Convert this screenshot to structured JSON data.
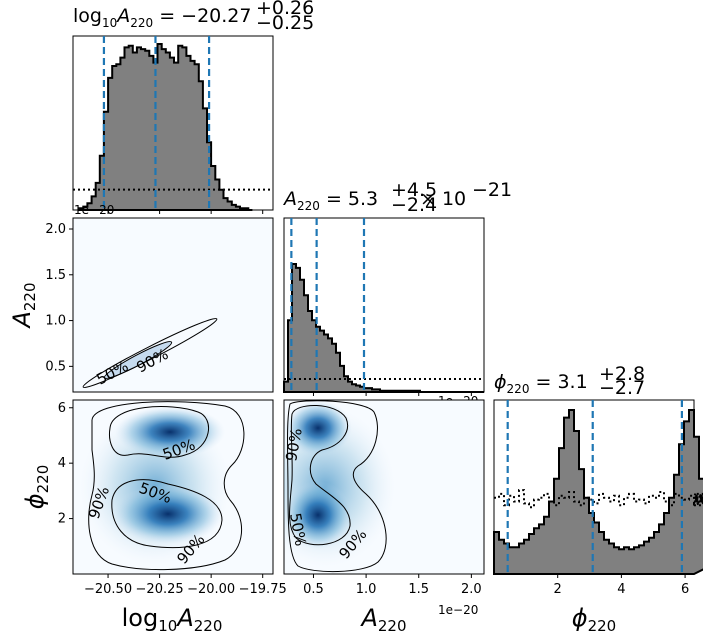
{
  "chart_data": {
    "type": "corner",
    "parameters": [
      {
        "key": "logA",
        "xlabel_main": "log",
        "xlabel_sub1": "10",
        "xlabel_var": "A",
        "xlabel_sub2": "220",
        "range": [
          -20.67,
          -19.7
        ],
        "ticks": [
          -20.5,
          -20.25,
          -20.0,
          -19.75
        ],
        "tick_labels": [
          "−20.50",
          "−20.25",
          "−20.00",
          "−19.75"
        ],
        "title_prefix": "log",
        "title_sub": "10",
        "title_var": "A",
        "title_sub2": "220",
        "title_eq": " = −20.27",
        "title_sup": "+0.26",
        "title_subsc": "−0.25",
        "quantiles": [
          -20.52,
          -20.27,
          -20.01
        ],
        "hist_bin_edges_start": -20.64,
        "hist_bin_width": 0.02,
        "hist_values": [
          1,
          2,
          4,
          8,
          16,
          32,
          58,
          78,
          85,
          86,
          90,
          96,
          97,
          93,
          96,
          95,
          94,
          91,
          87,
          98,
          95,
          93,
          90,
          87,
          97,
          96,
          91,
          88,
          86,
          76,
          60,
          40,
          26,
          18,
          12,
          7,
          5,
          3,
          2,
          1,
          1,
          0
        ],
        "prior_level": 12,
        "offset_label": "1e−20"
      },
      {
        "key": "A",
        "ylabel_var": "A",
        "ylabel_sub": "220",
        "range": [
          0.22,
          2.12
        ],
        "ticks": [
          0.5,
          1.0,
          1.5,
          2.0
        ],
        "tick_labels": [
          "0.5",
          "1.0",
          "1.5",
          "2.0"
        ],
        "title_var": "A",
        "title_sub": "220",
        "title_eq": " = 5.3",
        "title_sup": "+4.5",
        "title_subsc": "−2.4",
        "title_mult": " × 10",
        "title_exp": "−21",
        "quantiles": [
          0.29,
          0.53,
          0.98
        ],
        "hist_bin_edges_start": 0.22,
        "hist_bin_width": 0.038,
        "hist_values": [
          8,
          55,
          98,
          95,
          86,
          74,
          62,
          55,
          50,
          47,
          44,
          41,
          37,
          30,
          20,
          12,
          8,
          6,
          5,
          4,
          3,
          3,
          2,
          2,
          1,
          1,
          1,
          1,
          1,
          1,
          1,
          1,
          1,
          1,
          0,
          0,
          0,
          0,
          0,
          0,
          0,
          0,
          0,
          0,
          0,
          0,
          0,
          0,
          0,
          0
        ],
        "prior_level": 10,
        "offset_label": "1e−20"
      },
      {
        "key": "phi",
        "xlabel_var": "ϕ",
        "xlabel_sub": "220",
        "range": [
          0.0,
          6.28
        ],
        "ticks": [
          2,
          4,
          6
        ],
        "tick_labels": [
          "2",
          "4",
          "6"
        ],
        "yticks": [
          2,
          4,
          6
        ],
        "title_var": "ϕ",
        "title_sub": "220",
        "title_eq": " = 3.1",
        "title_sup": "+2.8",
        "title_subsc": "−2.7",
        "quantiles": [
          0.43,
          3.1,
          5.9
        ],
        "hist_bin_edges_start": 0.0,
        "hist_bin_width": 0.157,
        "hist_values": [
          22,
          18,
          16,
          14,
          14,
          16,
          18,
          21,
          24,
          26,
          30,
          38,
          50,
          66,
          82,
          86,
          75,
          55,
          40,
          32,
          27,
          22,
          18,
          16,
          14,
          13,
          14,
          13,
          14,
          15,
          17,
          19,
          22,
          26,
          32,
          40,
          52,
          68,
          80,
          86,
          72,
          50,
          35,
          28,
          22,
          18,
          16,
          14,
          14,
          13
        ],
        "prior_level": 38,
        "prior_noise": [
          40,
          42,
          36,
          41,
          38,
          44,
          37,
          35,
          39,
          40,
          42,
          38,
          36,
          41,
          40,
          43,
          38,
          36,
          40,
          39,
          37,
          42,
          40,
          38,
          41,
          36,
          40,
          42,
          38,
          39,
          37,
          41,
          40,
          43,
          38,
          36,
          42,
          40,
          39,
          41,
          37,
          40,
          42,
          38,
          36,
          41,
          39,
          40,
          38,
          40
        ]
      }
    ],
    "contour_labels": {
      "p50": "50%",
      "p90": "90%"
    },
    "colors": {
      "hist_fill": "#808080",
      "hist_edge": "#000000",
      "quantile_line": "#1f77b4",
      "density_dark": "#08306b",
      "density_light": "#f7fbff"
    }
  }
}
